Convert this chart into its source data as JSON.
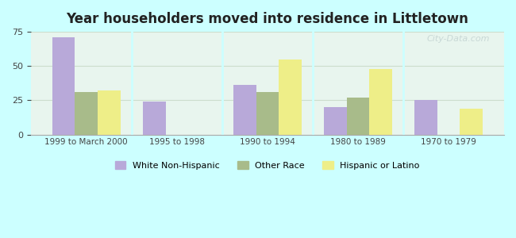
{
  "title": "Year householders moved into residence in Littletown",
  "categories": [
    "1999 to March 2000",
    "1995 to 1998",
    "1990 to 1994",
    "1980 to 1989",
    "1970 to 1979"
  ],
  "white_non_hispanic": [
    71,
    24,
    36,
    20,
    25
  ],
  "other_race": [
    31,
    0,
    31,
    27,
    0
  ],
  "hispanic_or_latino": [
    32,
    0,
    55,
    48,
    19
  ],
  "bar_colors": {
    "white": "#b8a9d9",
    "other": "#a8bb8a",
    "hispanic": "#eeee88"
  },
  "background_color": "#ccffff",
  "plot_bg_gradient_top": "#e8f5e9",
  "plot_bg_gradient_bottom": "#f0fff0",
  "ylim": [
    0,
    75
  ],
  "yticks": [
    0,
    25,
    50,
    75
  ],
  "bar_width": 0.25,
  "legend_labels": [
    "White Non-Hispanic",
    "Other Race",
    "Hispanic or Latino"
  ],
  "watermark": "City-Data.com"
}
